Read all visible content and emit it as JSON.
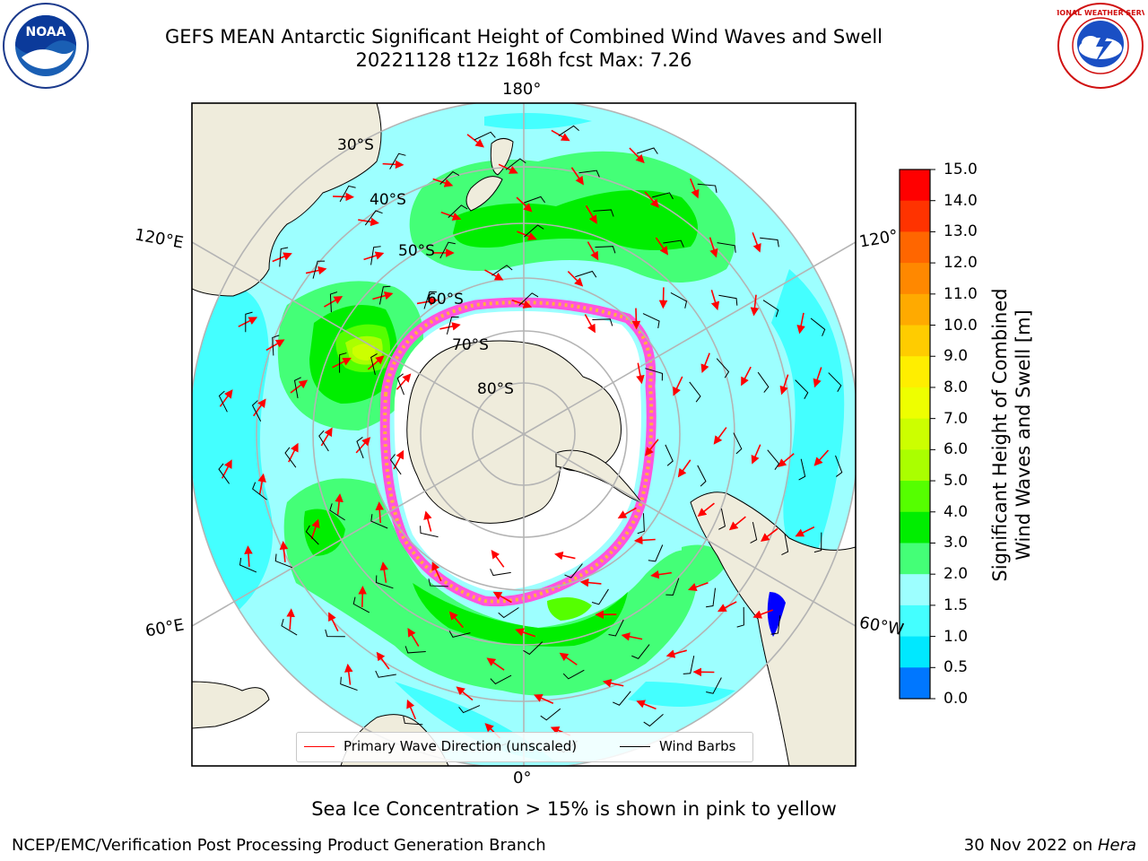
{
  "title": {
    "line1": "GEFS MEAN Antarctic Significant Height of Combined Wind Waves and Swell",
    "line2": "20221128 t12z 168h fcst   Max: 7.26"
  },
  "logos": {
    "left": {
      "icon": "noaa-logo",
      "text": "NOAA"
    },
    "right": {
      "icon": "nws-logo",
      "text": "NATIONAL WEATHER SERVICE"
    }
  },
  "map": {
    "projection": "south-polar-stereographic",
    "lon_labels": {
      "top": "180°",
      "bottom": "0°",
      "left_upper": "120°E",
      "left_lower": "60°E",
      "right_upper": "120°",
      "right_lower": "60°W"
    },
    "lat_labels": [
      "30°S",
      "40°S",
      "50°S",
      "60°S",
      "70°S",
      "80°S"
    ],
    "colors": {
      "land": "#efecdc",
      "ocean_low": "#9dffff",
      "wave_arrow": "#ff0000",
      "wind_barb": "#000000",
      "sea_ice": "#ff55dd",
      "grid": "#b4b4b4"
    }
  },
  "legend": {
    "wave_label": "Primary Wave Direction (unscaled)",
    "barb_label": "Wind Barbs"
  },
  "colorbar": {
    "label_line1": "Significant Height of Combined",
    "label_line2": "Wind Waves and Swell [m]",
    "ticks": [
      "15.0",
      "14.0",
      "13.0",
      "12.0",
      "11.0",
      "10.0",
      "9.0",
      "8.0",
      "7.0",
      "6.0",
      "5.0",
      "4.0",
      "3.0",
      "2.0",
      "1.5",
      "1.0",
      "0.5",
      "0.0"
    ],
    "colors_top_to_bottom": [
      "#ff0000",
      "#ff3300",
      "#ff6600",
      "#ff8800",
      "#ffaa00",
      "#ffcc00",
      "#ffee00",
      "#eeff00",
      "#ccff00",
      "#aaff00",
      "#55ff00",
      "#00ee00",
      "#44ff77",
      "#9dffff",
      "#44ffff",
      "#00e8ff",
      "#0077ff",
      "#0000ff"
    ]
  },
  "caption": "Sea Ice Concentration > 15% is shown in pink to yellow",
  "footer": {
    "left": "NCEP/EMC/Verification Post Processing Product Generation Branch",
    "right_prefix": "30 Nov 2022 on ",
    "right_machine": "Hera"
  }
}
